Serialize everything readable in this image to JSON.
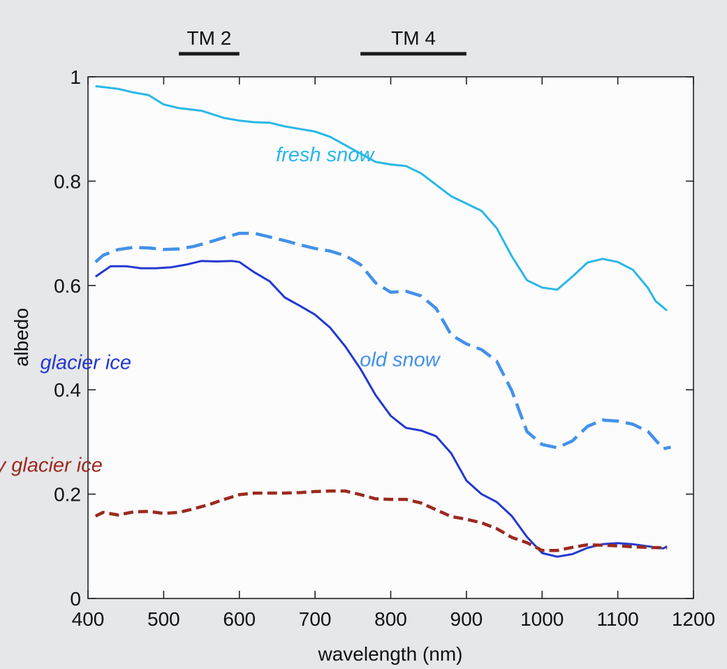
{
  "chart_data": {
    "type": "line",
    "title": "",
    "xlabel": "wavelength (nm)",
    "ylabel": "albedo",
    "xlim": [
      400,
      1200
    ],
    "ylim": [
      0,
      1
    ],
    "grid": false,
    "xticks": [
      400,
      500,
      600,
      700,
      800,
      900,
      1000,
      1100,
      1200
    ],
    "yticks": [
      0,
      0.2,
      0.4,
      0.6,
      0.8,
      1
    ],
    "ytick_labels": [
      "0",
      "0.2",
      "0.4",
      "0.6",
      "0.8",
      "1"
    ],
    "bands": [
      {
        "label": "TM 2",
        "range": [
          520,
          600
        ]
      },
      {
        "label": "TM 4",
        "range": [
          760,
          900
        ]
      }
    ],
    "series": [
      {
        "name": "fresh snow",
        "color": "#29b7e6",
        "style": "solid",
        "label_at": [
          713,
          0.838
        ],
        "x": [
          410,
          440,
          460,
          480,
          500,
          520,
          550,
          580,
          600,
          620,
          640,
          660,
          680,
          700,
          720,
          740,
          760,
          780,
          800,
          820,
          840,
          860,
          880,
          900,
          920,
          940,
          960,
          980,
          1000,
          1020,
          1040,
          1060,
          1080,
          1100,
          1120,
          1140,
          1150,
          1165
        ],
        "y": [
          0.982,
          0.977,
          0.97,
          0.965,
          0.947,
          0.94,
          0.935,
          0.921,
          0.916,
          0.913,
          0.912,
          0.905,
          0.9,
          0.895,
          0.885,
          0.869,
          0.853,
          0.837,
          0.832,
          0.829,
          0.815,
          0.793,
          0.771,
          0.757,
          0.743,
          0.71,
          0.656,
          0.61,
          0.596,
          0.592,
          0.617,
          0.644,
          0.651,
          0.645,
          0.63,
          0.595,
          0.57,
          0.552
        ]
      },
      {
        "name": "old snow",
        "color": "#4391e9",
        "style": "dashed",
        "label_at": [
          812,
          0.445
        ],
        "x": [
          410,
          420,
          440,
          460,
          480,
          500,
          520,
          540,
          560,
          580,
          600,
          620,
          640,
          660,
          680,
          700,
          720,
          740,
          760,
          780,
          800,
          820,
          840,
          860,
          880,
          900,
          920,
          940,
          960,
          980,
          1000,
          1020,
          1040,
          1060,
          1080,
          1100,
          1120,
          1140,
          1160,
          1170
        ],
        "y": [
          0.645,
          0.658,
          0.669,
          0.673,
          0.672,
          0.669,
          0.67,
          0.675,
          0.683,
          0.692,
          0.7,
          0.7,
          0.693,
          0.686,
          0.678,
          0.671,
          0.666,
          0.657,
          0.64,
          0.605,
          0.587,
          0.589,
          0.58,
          0.556,
          0.505,
          0.488,
          0.477,
          0.455,
          0.398,
          0.32,
          0.295,
          0.289,
          0.302,
          0.33,
          0.342,
          0.34,
          0.334,
          0.32,
          0.287,
          0.29
        ]
      },
      {
        "name": "glacier ice",
        "color": "#2238d0",
        "style": "solid",
        "label_at": [
          397,
          0.44
        ],
        "x": [
          410,
          430,
          450,
          470,
          490,
          510,
          530,
          550,
          570,
          590,
          600,
          610,
          620,
          640,
          660,
          680,
          700,
          720,
          740,
          760,
          780,
          800,
          820,
          840,
          860,
          880,
          900,
          920,
          940,
          960,
          980,
          1000,
          1020,
          1040,
          1060,
          1080,
          1100,
          1120,
          1140,
          1160,
          1165
        ],
        "y": [
          0.617,
          0.637,
          0.637,
          0.633,
          0.633,
          0.635,
          0.64,
          0.647,
          0.646,
          0.647,
          0.645,
          0.635,
          0.625,
          0.608,
          0.577,
          0.561,
          0.544,
          0.519,
          0.483,
          0.44,
          0.39,
          0.35,
          0.327,
          0.322,
          0.311,
          0.278,
          0.226,
          0.2,
          0.185,
          0.158,
          0.118,
          0.087,
          0.08,
          0.085,
          0.097,
          0.104,
          0.106,
          0.104,
          0.1,
          0.096,
          0.1
        ]
      },
      {
        "name": "dirty glacier ice",
        "color": "#9b2a1f",
        "style": "dashed",
        "label_at": [
          330,
          0.243
        ],
        "x": [
          410,
          420,
          440,
          460,
          480,
          500,
          520,
          540,
          560,
          580,
          600,
          620,
          640,
          660,
          680,
          700,
          720,
          740,
          760,
          780,
          800,
          820,
          840,
          860,
          880,
          900,
          920,
          940,
          960,
          980,
          1000,
          1020,
          1040,
          1060,
          1080,
          1100,
          1120,
          1140,
          1160,
          1165
        ],
        "y": [
          0.158,
          0.165,
          0.16,
          0.166,
          0.167,
          0.163,
          0.165,
          0.172,
          0.18,
          0.19,
          0.199,
          0.202,
          0.202,
          0.202,
          0.203,
          0.205,
          0.206,
          0.206,
          0.199,
          0.191,
          0.19,
          0.19,
          0.183,
          0.17,
          0.157,
          0.152,
          0.145,
          0.134,
          0.117,
          0.107,
          0.092,
          0.092,
          0.098,
          0.103,
          0.102,
          0.101,
          0.099,
          0.098,
          0.097,
          0.097
        ]
      }
    ]
  }
}
